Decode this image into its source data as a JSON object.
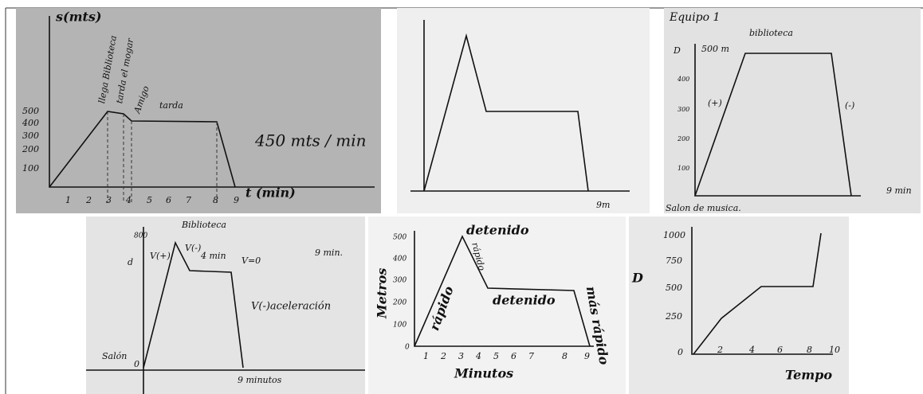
{
  "panels": [
    {
      "texts": [
        "s(mts)",
        "500",
        "400",
        "300",
        "200",
        "100",
        "llega Biblioteca",
        "tarda el mogar",
        "Amigo",
        "tarda",
        "450 mts / min",
        "t (min)",
        "1",
        "2",
        "3",
        "4",
        "5",
        "6",
        "7",
        "8",
        "9"
      ]
    },
    {
      "texts": [
        "9m"
      ]
    },
    {
      "texts": [
        "Equipo 1",
        "biblioteca",
        "D",
        "500 m",
        "400",
        "300",
        "200",
        "100",
        "(+)",
        "(-)",
        "9 min",
        "Salon de musica."
      ]
    },
    {
      "texts": [
        "Biblioteca",
        "800",
        "d",
        "V(+)",
        "V(-)",
        "4 min",
        "V=0",
        "9 min.",
        "V(-)aceleración",
        "Salón",
        "0",
        "9 minutos"
      ]
    },
    {
      "texts": [
        "detenido",
        "Metros",
        "500",
        "400",
        "300",
        "200",
        "100",
        "0",
        "rápido",
        "rápido",
        "detenido",
        "más rápido",
        "1",
        "2",
        "3",
        "4",
        "5",
        "6",
        "7",
        "8",
        "9",
        "Minutos"
      ]
    },
    {
      "texts": [
        "1000",
        "750",
        "500",
        "250",
        "0",
        "2",
        "4",
        "6",
        "8",
        "10",
        "D",
        "Tempo"
      ]
    }
  ]
}
